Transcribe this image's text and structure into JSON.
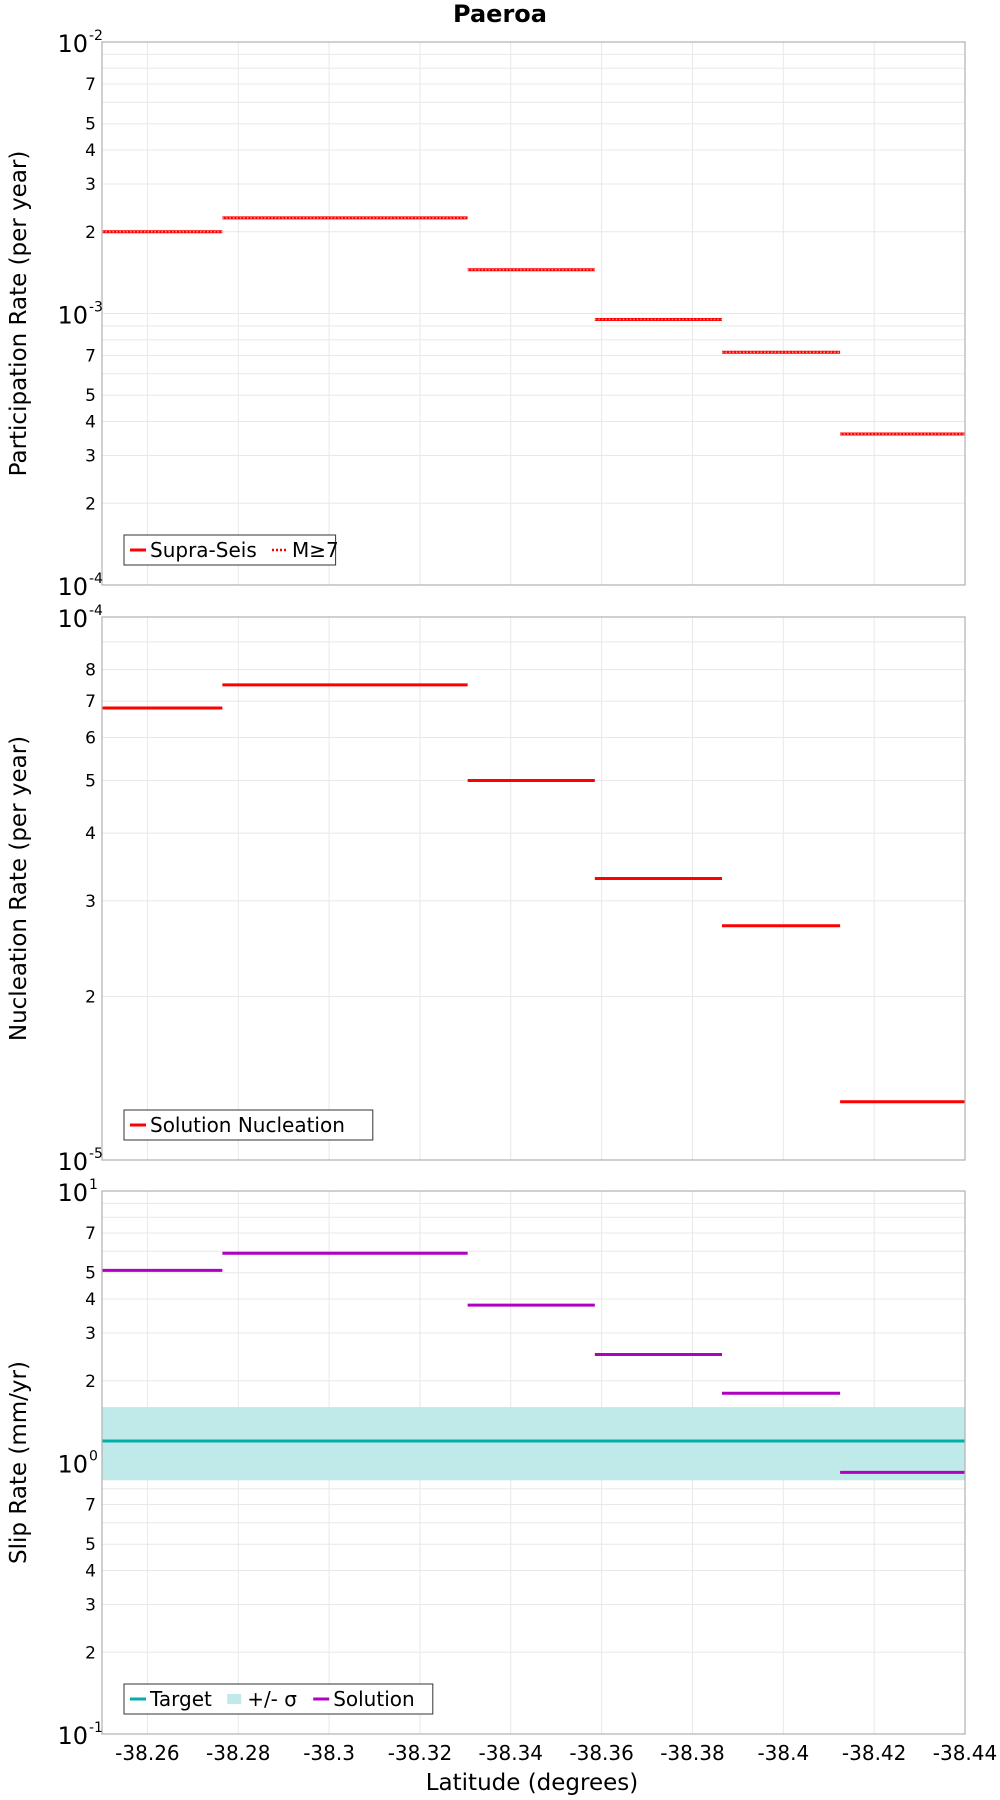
{
  "chart_data": {
    "title": "Paeroa",
    "xlabel": "Latitude (degrees)",
    "x_ticks": [
      "-38.26",
      "-38.28",
      "-38.3",
      "-38.32",
      "-38.34",
      "-38.36",
      "-38.38",
      "-38.4",
      "-38.42",
      "-38.44"
    ],
    "xlim": [
      -38.25,
      -38.44
    ],
    "x_reversed": true,
    "panels": [
      {
        "type": "line",
        "y_scale": "log",
        "ylabel": "Participation Rate (per year)",
        "ylim": [
          0.0001,
          0.01
        ],
        "y_major_ticks": [
          {
            "base": "10",
            "exp": "-4",
            "value": 0.0001
          },
          {
            "base": "10",
            "exp": "-3",
            "value": 0.001
          },
          {
            "base": "10",
            "exp": "-2",
            "value": 0.01
          }
        ],
        "y_minor_labels": [
          "2",
          "3",
          "4",
          "5",
          "7"
        ],
        "legend": {
          "placement": "bottom-left",
          "entries": [
            {
              "label": "Supra-Seis",
              "color": "#ff0000",
              "style": "solid"
            },
            {
              "label": "M≥7",
              "color": "#ff0000",
              "style": "dotted"
            }
          ]
        },
        "series": [
          {
            "name": "Supra-Seis",
            "color": "#ff0000",
            "style": "solid",
            "segments": [
              {
                "x": [
                  -38.25,
                  -38.2765
                ],
                "y": 0.002
              },
              {
                "x": [
                  -38.2765,
                  -38.3305
                ],
                "y": 0.00225
              },
              {
                "x": [
                  -38.3305,
                  -38.3585
                ],
                "y": 0.00145
              },
              {
                "x": [
                  -38.3585,
                  -38.3865
                ],
                "y": 0.00095
              },
              {
                "x": [
                  -38.3865,
                  -38.4125
                ],
                "y": 0.00072
              },
              {
                "x": [
                  -38.4125,
                  -38.44
                ],
                "y": 0.00036
              }
            ]
          },
          {
            "name": "M≥7",
            "color": "#ff0000",
            "style": "dotted",
            "segments": [
              {
                "x": [
                  -38.25,
                  -38.2765
                ],
                "y": 0.002
              },
              {
                "x": [
                  -38.2765,
                  -38.3305
                ],
                "y": 0.00225
              },
              {
                "x": [
                  -38.3305,
                  -38.3585
                ],
                "y": 0.00145
              },
              {
                "x": [
                  -38.3585,
                  -38.3865
                ],
                "y": 0.00095
              },
              {
                "x": [
                  -38.3865,
                  -38.4125
                ],
                "y": 0.00072
              },
              {
                "x": [
                  -38.4125,
                  -38.44
                ],
                "y": 0.00036
              }
            ]
          }
        ]
      },
      {
        "type": "line",
        "y_scale": "log",
        "ylabel": "Nucleation Rate (per year)",
        "ylim": [
          1e-05,
          0.0001
        ],
        "y_major_ticks": [
          {
            "base": "10",
            "exp": "-5",
            "value": 1e-05
          },
          {
            "base": "10",
            "exp": "-4",
            "value": 0.0001
          }
        ],
        "y_minor_labels": [
          "2",
          "3",
          "4",
          "5",
          "6",
          "7",
          "8"
        ],
        "legend": {
          "placement": "bottom-left",
          "entries": [
            {
              "label": "Solution Nucleation",
              "color": "#ff0000",
              "style": "solid"
            }
          ]
        },
        "series": [
          {
            "name": "Solution Nucleation",
            "color": "#ff0000",
            "style": "solid",
            "segments": [
              {
                "x": [
                  -38.25,
                  -38.2765
                ],
                "y": 6.8e-05
              },
              {
                "x": [
                  -38.2765,
                  -38.3305
                ],
                "y": 7.5e-05
              },
              {
                "x": [
                  -38.3305,
                  -38.3585
                ],
                "y": 5e-05
              },
              {
                "x": [
                  -38.3585,
                  -38.3865
                ],
                "y": 3.3e-05
              },
              {
                "x": [
                  -38.3865,
                  -38.4125
                ],
                "y": 2.7e-05
              },
              {
                "x": [
                  -38.4125,
                  -38.44
                ],
                "y": 1.28e-05
              }
            ]
          }
        ]
      },
      {
        "type": "line",
        "y_scale": "log",
        "ylabel": "Slip Rate (mm/yr)",
        "ylim": [
          0.1,
          10
        ],
        "y_major_ticks": [
          {
            "base": "10",
            "exp": "-1",
            "value": 0.1
          },
          {
            "base": "10",
            "exp": "0",
            "value": 1
          },
          {
            "base": "10",
            "exp": "1",
            "value": 10
          }
        ],
        "y_minor_labels": [
          "2",
          "3",
          "4",
          "5",
          "7"
        ],
        "legend": {
          "placement": "bottom-left",
          "entries": [
            {
              "label": "Target",
              "color": "#00b0a8",
              "style": "solid"
            },
            {
              "label": "+/- σ",
              "color": "#bfeae9",
              "style": "band"
            },
            {
              "label": "Solution",
              "color": "#b000c0",
              "style": "solid"
            }
          ]
        },
        "band": {
          "name": "+/- σ",
          "color": "#bfeae9",
          "y_low": 0.86,
          "y_high": 1.6
        },
        "series": [
          {
            "name": "Target",
            "color": "#00b0a8",
            "style": "solid",
            "segments": [
              {
                "x": [
                  -38.25,
                  -38.44
                ],
                "y": 1.2
              }
            ]
          },
          {
            "name": "Solution",
            "color": "#b000c0",
            "style": "solid",
            "segments": [
              {
                "x": [
                  -38.25,
                  -38.2765
                ],
                "y": 5.1
              },
              {
                "x": [
                  -38.2765,
                  -38.3305
                ],
                "y": 5.9
              },
              {
                "x": [
                  -38.3305,
                  -38.3585
                ],
                "y": 3.8
              },
              {
                "x": [
                  -38.3585,
                  -38.3865
                ],
                "y": 2.5
              },
              {
                "x": [
                  -38.3865,
                  -38.4125
                ],
                "y": 1.8
              },
              {
                "x": [
                  -38.4125,
                  -38.44
                ],
                "y": 0.92
              }
            ]
          }
        ]
      }
    ]
  }
}
